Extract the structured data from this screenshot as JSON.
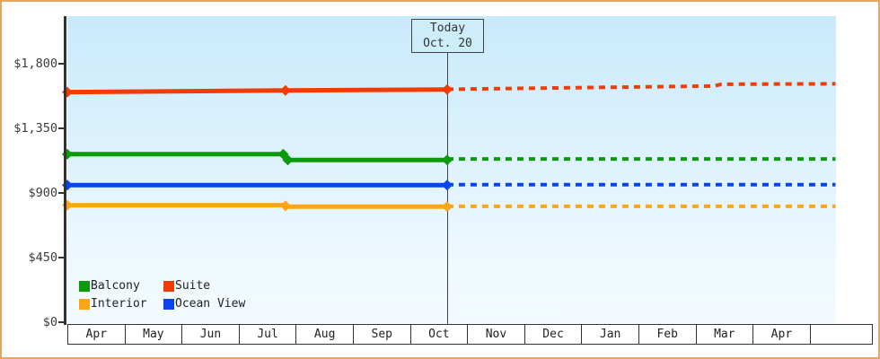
{
  "window": {
    "frame_border_color": "#e9a45b",
    "background_color": "#ffffff",
    "axis_color": "#333333"
  },
  "today_marker": {
    "title": "Today",
    "date": "Oct. 20",
    "x_units": 6.65
  },
  "chart_data": {
    "type": "line",
    "title": "",
    "xlabel": "",
    "ylabel": "",
    "y_axis": {
      "tick_labels": [
        "$1,800",
        "$1,350",
        "$900",
        "$450",
        "$0"
      ],
      "tick_values": [
        1800,
        1350,
        900,
        450,
        0
      ],
      "range": [
        0,
        2000
      ],
      "grid": false
    },
    "x_axis": {
      "months": [
        "Apr",
        "May",
        "Jun",
        "Jul",
        "Aug",
        "Sep",
        "Oct",
        "Nov",
        "Dec",
        "Jan",
        "Feb",
        "Mar",
        "Apr"
      ],
      "range_units": [
        0,
        13.6
      ]
    },
    "legend_position": "bottom-left",
    "series": [
      {
        "name": "Balcony",
        "color": "#0a9a0a",
        "history": [
          {
            "x": 0,
            "price": 1170,
            "marker": true
          },
          {
            "x": 3.78,
            "price": 1170,
            "marker": true
          },
          {
            "x": 3.86,
            "price": 1130,
            "marker": true
          },
          {
            "x": 6.65,
            "price": 1130,
            "marker": true
          }
        ],
        "forecast": [
          {
            "x": 6.65,
            "price": 1137
          },
          {
            "x": 13.45,
            "price": 1137
          }
        ]
      },
      {
        "name": "Suite",
        "color": "#f23b05",
        "history": [
          {
            "x": 0,
            "price": 1602,
            "marker": true
          },
          {
            "x": 3.82,
            "price": 1614,
            "marker": true
          },
          {
            "x": 6.65,
            "price": 1620,
            "marker": true
          }
        ],
        "forecast": [
          {
            "x": 6.65,
            "price": 1622
          },
          {
            "x": 11.33,
            "price": 1645
          },
          {
            "x": 11.45,
            "price": 1657
          },
          {
            "x": 13.45,
            "price": 1660
          }
        ]
      },
      {
        "name": "Interior",
        "color": "#ffa513",
        "history": [
          {
            "x": 0,
            "price": 815,
            "marker": true
          },
          {
            "x": 3.8,
            "price": 815
          },
          {
            "x": 3.82,
            "price": 810,
            "marker": true
          },
          {
            "x": 3.84,
            "price": 805
          },
          {
            "x": 6.65,
            "price": 805,
            "marker": true
          }
        ],
        "forecast": [
          {
            "x": 6.65,
            "price": 807
          },
          {
            "x": 13.45,
            "price": 807
          }
        ]
      },
      {
        "name": "Ocean View",
        "color": "#0a44ee",
        "history": [
          {
            "x": 0,
            "price": 955,
            "marker": true
          },
          {
            "x": 6.65,
            "price": 955,
            "marker": true
          }
        ],
        "forecast": [
          {
            "x": 6.65,
            "price": 958
          },
          {
            "x": 13.45,
            "price": 958
          }
        ]
      }
    ],
    "legend_order": [
      "Balcony",
      "Suite",
      "Interior",
      "Ocean View"
    ]
  }
}
